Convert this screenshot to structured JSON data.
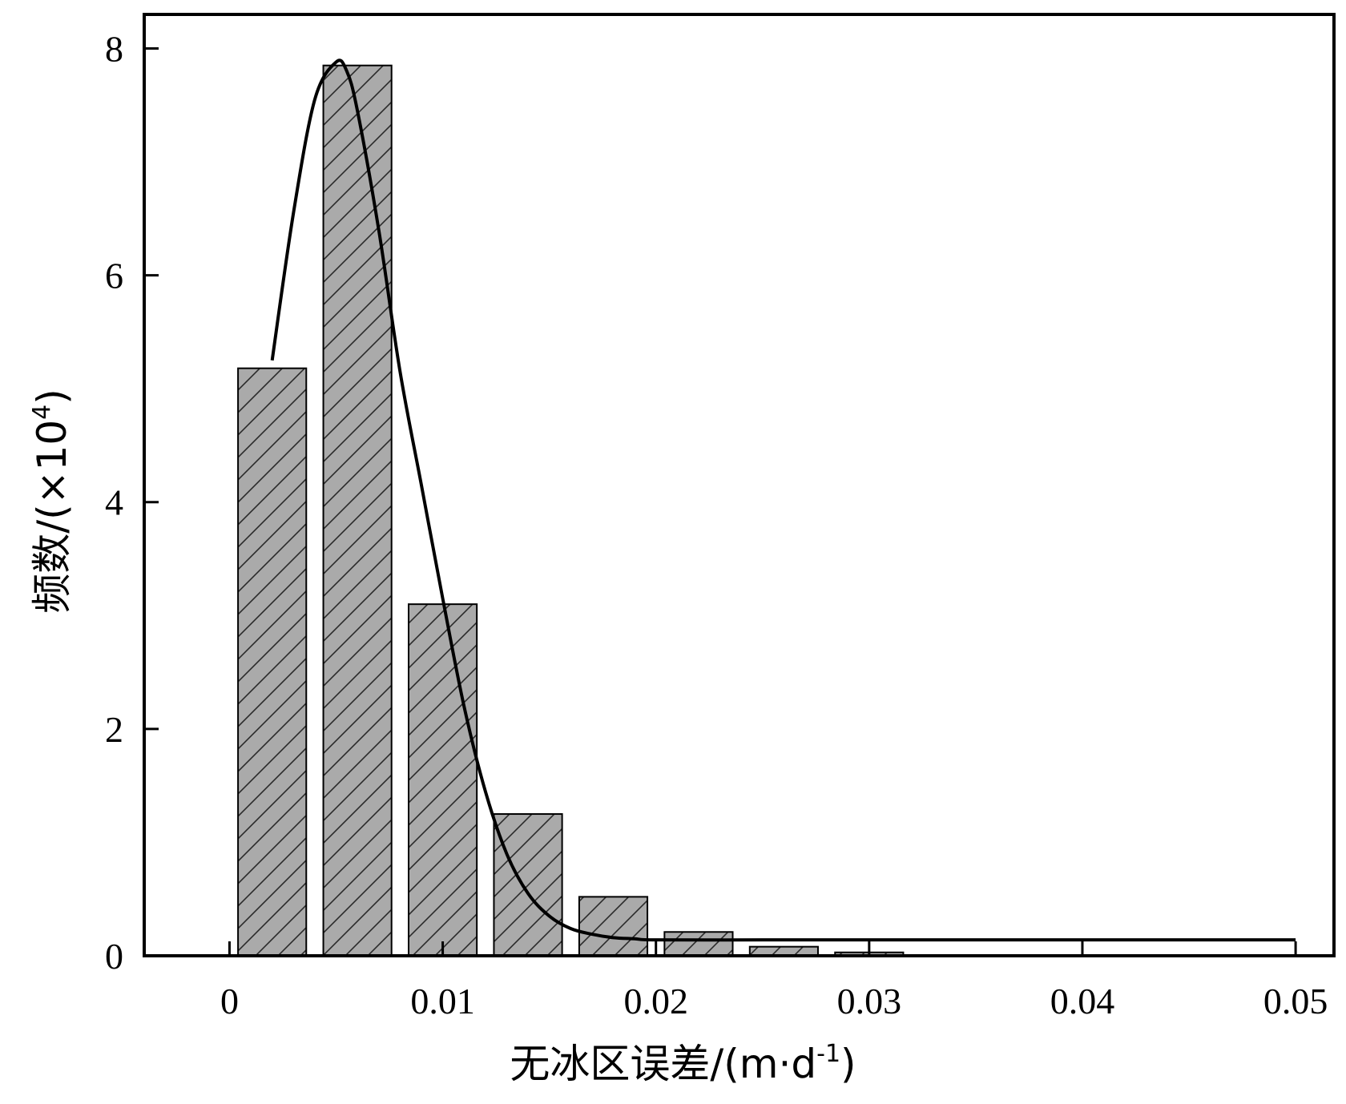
{
  "chart_data": {
    "type": "bar",
    "title": "",
    "xlabel": "无冰区误差/(m·d-1)",
    "xlabel_parts": {
      "main": "无冰区误差/(m·d",
      "sup": "-1",
      "close": ")"
    },
    "ylabel": "频数/(×104)",
    "ylabel_parts": {
      "main": "频数/(×10",
      "sup": "4",
      "close": ")"
    },
    "xlim": [
      -0.004,
      0.0518
    ],
    "ylim": [
      0,
      8.3
    ],
    "x_ticks": [
      0,
      0.01,
      0.02,
      0.03,
      0.04,
      0.05
    ],
    "x_tick_labels": [
      "0",
      "0.01",
      "0.02",
      "0.03",
      "0.04",
      "0.05"
    ],
    "y_ticks": [
      0,
      2,
      4,
      6,
      8
    ],
    "y_tick_labels": [
      "0",
      "2",
      "4",
      "6",
      "8"
    ],
    "bar_width": 0.0032,
    "bars": [
      {
        "x": 0.002,
        "value": 5.18
      },
      {
        "x": 0.006,
        "value": 7.85
      },
      {
        "x": 0.01,
        "value": 3.1
      },
      {
        "x": 0.014,
        "value": 1.25
      },
      {
        "x": 0.018,
        "value": 0.52
      },
      {
        "x": 0.022,
        "value": 0.21
      },
      {
        "x": 0.026,
        "value": 0.08
      },
      {
        "x": 0.03,
        "value": 0.03
      }
    ],
    "fit_curve": {
      "x": [
        0.002,
        0.003,
        0.004,
        0.005,
        0.0055,
        0.006,
        0.007,
        0.008,
        0.009,
        0.01,
        0.011,
        0.012,
        0.013,
        0.014,
        0.015,
        0.016,
        0.017,
        0.018,
        0.019,
        0.02,
        0.025,
        0.03,
        0.04,
        0.05
      ],
      "y": [
        5.25,
        6.55,
        7.55,
        7.88,
        7.8,
        7.45,
        6.4,
        5.15,
        4.15,
        3.15,
        2.2,
        1.45,
        0.9,
        0.55,
        0.35,
        0.24,
        0.19,
        0.16,
        0.15,
        0.14,
        0.14,
        0.14,
        0.14,
        0.14
      ]
    },
    "grid": false,
    "legend": "none",
    "colors": {
      "bar_fill": "#aaaaaa",
      "bar_edge": "#000000",
      "hatch": "#2a2a2a",
      "curve": "#000000",
      "axis": "#000000"
    }
  }
}
